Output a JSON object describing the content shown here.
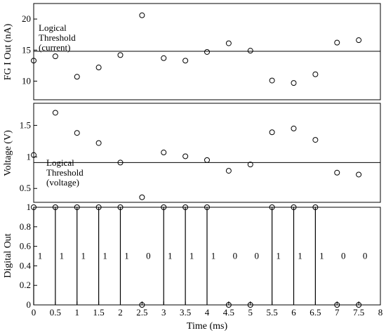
{
  "chart_data": [
    {
      "type": "scatter",
      "ylabel": "FG I Out (nA)",
      "ylim": [
        7,
        22.5
      ],
      "yticks": [
        10,
        15,
        20
      ],
      "annotation": [
        "Logical",
        "Threshold",
        "(current)"
      ],
      "threshold": 14.8,
      "x": [
        0,
        0.5,
        1,
        1.5,
        2,
        2.5,
        3,
        3.5,
        4,
        4.5,
        5,
        5.5,
        6,
        6.5,
        7,
        7.5
      ],
      "y": [
        13.3,
        14.0,
        10.7,
        12.2,
        14.2,
        20.6,
        13.7,
        13.3,
        14.7,
        16.1,
        14.9,
        10.1,
        9.7,
        11.1,
        16.2,
        16.6
      ]
    },
    {
      "type": "scatter",
      "ylabel": "Voltage (V)",
      "ylim": [
        0.28,
        1.85
      ],
      "yticks": [
        0.5,
        1,
        1.5
      ],
      "yticklabels": [
        "0.5",
        "1",
        "1.5"
      ],
      "annotation": [
        "Logical",
        "Threshold",
        "(voltage)"
      ],
      "threshold": 0.91,
      "x": [
        0,
        0.5,
        1,
        1.5,
        2,
        2.5,
        3,
        3.5,
        4,
        4.5,
        5,
        5.5,
        6,
        6.5,
        7,
        7.5
      ],
      "y": [
        1.03,
        1.7,
        1.38,
        1.22,
        0.91,
        0.36,
        1.07,
        1.01,
        0.95,
        0.78,
        0.88,
        1.39,
        1.45,
        1.27,
        0.75,
        0.72
      ]
    },
    {
      "type": "stem",
      "xlabel": "Time (ms)",
      "ylabel": "Digital Out",
      "ylim": [
        0,
        1
      ],
      "yticks": [
        0,
        0.2,
        0.4,
        0.6,
        0.8,
        1
      ],
      "yticklabels": [
        "0",
        "0.2",
        "0.4",
        "0.6",
        "0.8",
        "1"
      ],
      "xlim": [
        0,
        8
      ],
      "xticks": [
        0,
        0.5,
        1,
        1.5,
        2,
        2.5,
        3,
        3.5,
        4,
        4.5,
        5,
        5.5,
        6,
        6.5,
        7,
        7.5,
        8
      ],
      "xticklabels": [
        "0",
        "0.5",
        "1",
        "1.5",
        "2",
        "2.5",
        "3",
        "3.5",
        "4",
        "4.5",
        "5",
        "5.5",
        "6",
        "6.5",
        "7",
        "7.5",
        "8"
      ],
      "x": [
        0,
        0.5,
        1,
        1.5,
        2,
        2.5,
        3,
        3.5,
        4,
        4.5,
        5,
        5.5,
        6,
        6.5,
        7,
        7.5
      ],
      "y": [
        1,
        1,
        1,
        1,
        1,
        0,
        1,
        1,
        1,
        0,
        0,
        1,
        1,
        1,
        0,
        0
      ],
      "labels": [
        "1",
        "1",
        "1",
        "1",
        "1",
        "0",
        "1",
        "1",
        "1",
        "0",
        "0",
        "1",
        "1",
        "1",
        "0",
        "0"
      ]
    }
  ]
}
